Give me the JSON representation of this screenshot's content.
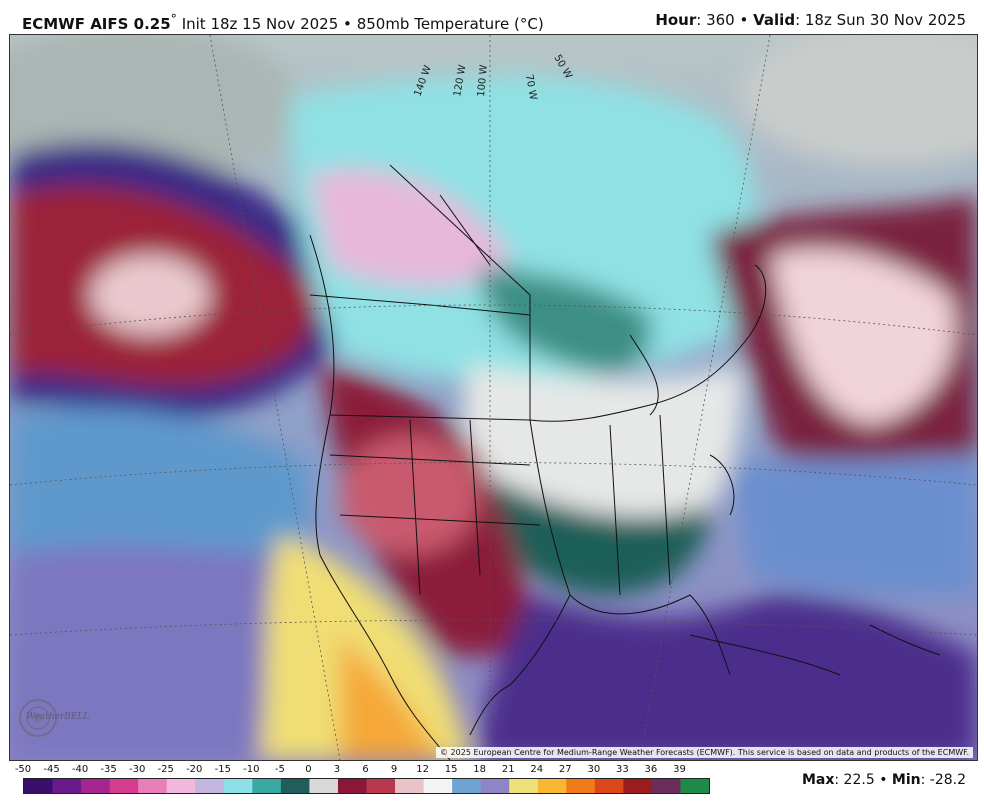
{
  "header": {
    "model": "ECMWF AIFS 0.25",
    "degree": "°",
    "init": "Init 18z 15 Nov 2025",
    "separator": "•",
    "field": "850mb Temperature (°C)",
    "hour_label": "Hour",
    "hour_value": ": 360",
    "valid_label": "Valid",
    "valid_value": ": 18z Sun 30 Nov 2025"
  },
  "map": {
    "longitude_labels": [
      "140 W",
      "120 W",
      "100 W",
      "70 W",
      "50 W"
    ],
    "credit": "© 2025 European Centre for Medium-Range Weather Forecasts (ECMWF). This service is based on data and products of the ECMWF.",
    "logo_text": "WeatherBELL"
  },
  "colorbar": {
    "ticks": [
      "-50",
      "-45",
      "-40",
      "-35",
      "-30",
      "-25",
      "-20",
      "-15",
      "-10",
      "-5",
      "0",
      "3",
      "6",
      "9",
      "12",
      "15",
      "18",
      "21",
      "24",
      "27",
      "30",
      "33",
      "36",
      "39"
    ],
    "colors": [
      "#3a0f6b",
      "#6b1a8c",
      "#a3258f",
      "#d43c8f",
      "#e87fb8",
      "#f1b8dc",
      "#c3b6e0",
      "#8fe0e6",
      "#3aa9a4",
      "#1f5e5a",
      "#d9d9d9",
      "#8a1738",
      "#b8394d",
      "#e8c3c8",
      "#f3f3f3",
      "#6fa4d2",
      "#8e84c6",
      "#efe07a",
      "#f7b733",
      "#f07c19",
      "#d9471a",
      "#9b1c1c",
      "#6b2d5c",
      "#1d8a4a"
    ]
  },
  "stats": {
    "max_label": "Max",
    "max_value": ": 22.5",
    "min_label": "Min",
    "min_value": ": -28.2",
    "separator": "•"
  }
}
